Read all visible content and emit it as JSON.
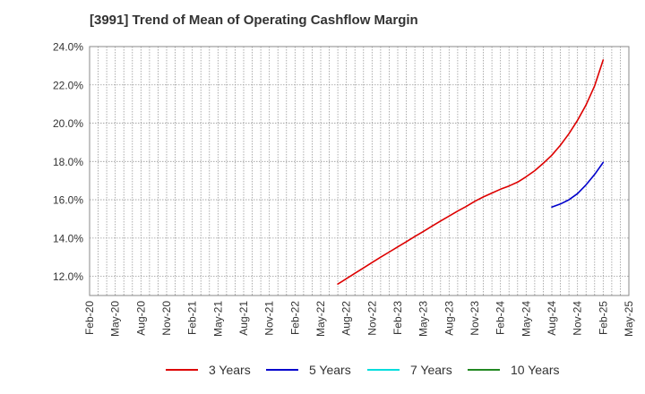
{
  "chart_data": {
    "type": "line",
    "title": "[3991]  Trend of Mean of Operating Cashflow Margin",
    "xlabel": "",
    "ylabel": "",
    "x_tick_labels": [
      "Feb-20",
      "May-20",
      "Aug-20",
      "Nov-20",
      "Feb-21",
      "May-21",
      "Aug-21",
      "Nov-21",
      "Feb-22",
      "May-22",
      "Aug-22",
      "Nov-22",
      "Feb-23",
      "May-23",
      "Aug-23",
      "Nov-23",
      "Feb-24",
      "May-24",
      "Aug-24",
      "Nov-24",
      "Feb-25",
      "May-25"
    ],
    "y_tick_labels": [
      "12.0%",
      "14.0%",
      "16.0%",
      "18.0%",
      "20.0%",
      "22.0%",
      "24.0%"
    ],
    "y_ticks": [
      12,
      14,
      16,
      18,
      20,
      22,
      24
    ],
    "ylim": [
      11,
      24
    ],
    "grid": true,
    "legend_position": "bottom",
    "series": [
      {
        "name": "3 Years",
        "color": "#dd0000",
        "x": [
          "Jul-22",
          "Aug-22",
          "Sep-22",
          "Oct-22",
          "Nov-22",
          "Dec-22",
          "Jan-23",
          "Feb-23",
          "Mar-23",
          "Apr-23",
          "May-23",
          "Jun-23",
          "Jul-23",
          "Aug-23",
          "Sep-23",
          "Oct-23",
          "Nov-23",
          "Dec-23",
          "Jan-24",
          "Feb-24",
          "Mar-24",
          "Apr-24",
          "May-24",
          "Jun-24",
          "Jul-24",
          "Aug-24",
          "Sep-24",
          "Oct-24",
          "Nov-24",
          "Dec-24",
          "Jan-25",
          "Feb-25"
        ],
        "values": [
          11.6,
          11.88,
          12.16,
          12.44,
          12.72,
          13.0,
          13.27,
          13.54,
          13.81,
          14.08,
          14.35,
          14.62,
          14.89,
          15.15,
          15.41,
          15.65,
          15.92,
          16.15,
          16.35,
          16.55,
          16.72,
          16.92,
          17.2,
          17.52,
          17.9,
          18.33,
          18.85,
          19.45,
          20.15,
          20.95,
          21.95,
          23.3
        ]
      },
      {
        "name": "5 Years",
        "color": "#0000cc",
        "x": [
          "Aug-24",
          "Sep-24",
          "Oct-24",
          "Nov-24",
          "Dec-24",
          "Jan-25",
          "Feb-25"
        ],
        "values": [
          15.62,
          15.78,
          16.0,
          16.32,
          16.78,
          17.32,
          17.95
        ]
      },
      {
        "name": "7 Years",
        "color": "#00dddd",
        "x": [],
        "values": []
      },
      {
        "name": "10 Years",
        "color": "#228822",
        "x": [],
        "values": []
      }
    ]
  }
}
